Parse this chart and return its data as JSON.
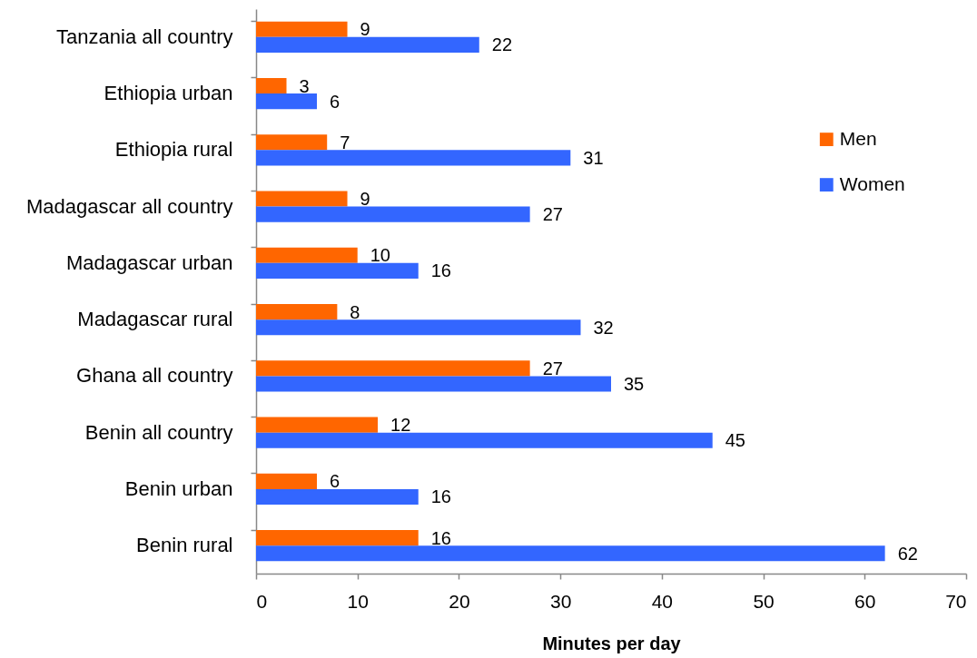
{
  "chart_data": {
    "type": "bar",
    "orientation": "horizontal",
    "xlabel": "Minutes per day",
    "categories": [
      "Tanzania all country",
      "Ethiopia urban",
      "Ethiopia rural",
      "Madagascar all country",
      "Madagascar urban",
      "Madagascar rural",
      "Ghana all country",
      "Benin all country",
      "Benin urban",
      "Benin rural"
    ],
    "series": [
      {
        "name": "Men",
        "color": "#ff6600",
        "values": [
          9,
          3,
          7,
          9,
          10,
          8,
          27,
          12,
          6,
          16
        ]
      },
      {
        "name": "Women",
        "color": "#3366ff",
        "values": [
          22,
          6,
          31,
          27,
          16,
          32,
          35,
          45,
          16,
          62
        ]
      }
    ],
    "xlim": [
      0,
      70
    ],
    "xticks": [
      0,
      10,
      20,
      30,
      40,
      50,
      60,
      70
    ],
    "data_labels": true,
    "legend": "right"
  }
}
